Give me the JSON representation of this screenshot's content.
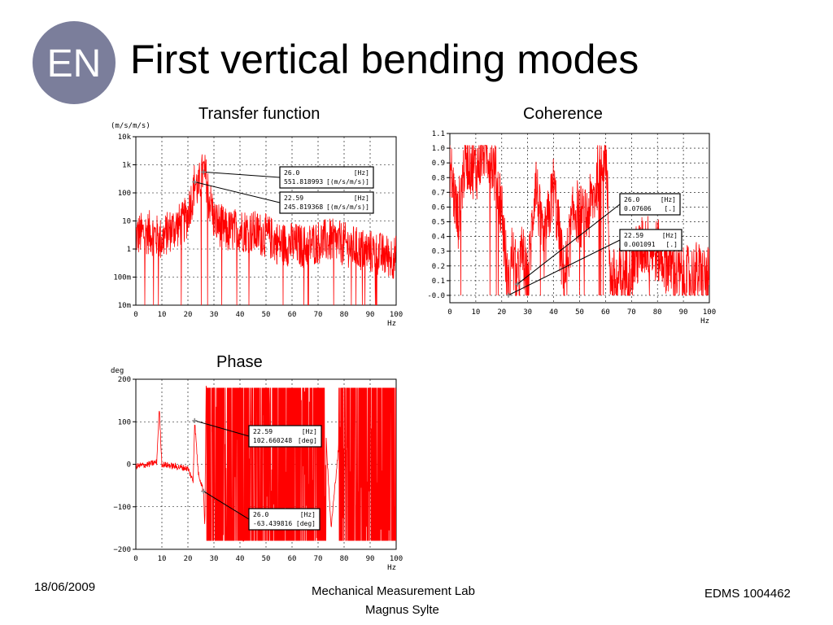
{
  "slide": {
    "logo_text": "EN",
    "title": "First vertical bending modes",
    "date": "18/06/2009",
    "center_line1": "Mechanical Measurement Lab",
    "center_line2": "Magnus Sylte",
    "edms": "EDMS 1004462"
  },
  "colors": {
    "trace": "#ff0000",
    "logo": "#7b7e9b",
    "grid": "#000000"
  },
  "chart_data": [
    {
      "id": "transfer",
      "type": "line",
      "title": "Transfer function",
      "ylabel": "(m/s/m/s)",
      "xlabel": "Hz",
      "xlim": [
        0,
        100
      ],
      "ylim": [
        0.01,
        10000
      ],
      "yscale": "log",
      "x_ticks": [
        0,
        10,
        20,
        30,
        40,
        50,
        60,
        70,
        80,
        90,
        100
      ],
      "y_tick_values": [
        0.01,
        0.1,
        1,
        10,
        100,
        1000,
        10000
      ],
      "y_tick_labels": [
        "10m",
        "100m",
        "1",
        "10",
        "100",
        "1k",
        "10k"
      ],
      "grid": true,
      "series": [
        {
          "x": [
            0,
            5,
            10,
            15,
            18,
            20,
            22,
            22.59,
            24,
            26,
            28,
            30,
            35,
            40,
            45,
            50,
            55,
            60,
            65,
            70,
            75,
            80,
            85,
            90,
            95,
            100
          ],
          "y": [
            3,
            4,
            2,
            6,
            8,
            15,
            80,
            245.8,
            120,
            551.8,
            60,
            10,
            4,
            5,
            4,
            3,
            1.5,
            1.5,
            1.2,
            1.8,
            2,
            1.5,
            1,
            0.8,
            0.6,
            0.5
          ]
        }
      ],
      "markers": [
        {
          "x": 26.0,
          "y": 551.818993
        },
        {
          "x": 22.59,
          "y": 245.819368
        }
      ],
      "annotations": [
        {
          "x_text": "26.0",
          "x_unit": "[Hz]",
          "y_text": "551.818993",
          "y_unit": "[(m/s/m/s)]"
        },
        {
          "x_text": "22.59",
          "x_unit": "[Hz]",
          "y_text": "245.819368",
          "y_unit": "[(m/s/m/s)]"
        }
      ]
    },
    {
      "id": "coherence",
      "type": "line",
      "title": "Coherence",
      "ylabel": "",
      "xlabel": "Hz",
      "xlim": [
        0,
        100
      ],
      "ylim": [
        -0.05,
        1.1
      ],
      "x_ticks": [
        0,
        10,
        20,
        30,
        40,
        50,
        60,
        70,
        80,
        90,
        100
      ],
      "y_tick_values": [
        0,
        0.1,
        0.2,
        0.3,
        0.4,
        0.5,
        0.6,
        0.7,
        0.8,
        0.9,
        1.0,
        1.1
      ],
      "y_tick_labels": [
        "-0.0",
        "0.1",
        "0.2",
        "0.3",
        "0.4",
        "0.5",
        "0.6",
        "0.7",
        "0.8",
        "0.9",
        "1.0",
        "1.1"
      ],
      "grid": true,
      "series": [
        {
          "x": [
            0,
            3,
            6,
            10,
            13,
            16,
            20,
            22.59,
            24,
            26,
            28,
            30,
            33,
            36,
            40,
            44,
            48,
            52,
            56,
            58,
            60,
            62,
            65,
            70,
            75,
            80,
            85,
            90,
            95,
            100
          ],
          "y": [
            0.9,
            0.5,
            0.95,
            0.85,
            1.0,
            0.95,
            0.6,
            0.001,
            0.3,
            0.076,
            0.3,
            0.05,
            0.8,
            0.3,
            0.75,
            0.1,
            0.6,
            0.5,
            0.7,
            0.95,
            1.0,
            0.1,
            0.1,
            0.2,
            0.35,
            0.3,
            0.2,
            0.1,
            0.15,
            0.1
          ]
        }
      ],
      "markers": [
        {
          "x": 26.0,
          "y": 0.07606
        },
        {
          "x": 22.59,
          "y": 0.001091
        }
      ],
      "annotations": [
        {
          "x_text": "26.0",
          "x_unit": "[Hz]",
          "y_text": "0.07606",
          "y_unit": "[.]"
        },
        {
          "x_text": "22.59",
          "x_unit": "[Hz]",
          "y_text": "0.001091",
          "y_unit": "[.]"
        }
      ]
    },
    {
      "id": "phase",
      "type": "line",
      "title": "Phase",
      "ylabel": "deg",
      "xlabel": "Hz",
      "xlim": [
        0,
        100
      ],
      "ylim": [
        -200,
        200
      ],
      "x_ticks": [
        0,
        10,
        20,
        30,
        40,
        50,
        60,
        70,
        80,
        90,
        100
      ],
      "y_tick_values": [
        -200,
        -100,
        0,
        100,
        200
      ],
      "y_tick_labels": [
        "−200",
        "−100",
        "0",
        "100",
        "200"
      ],
      "grid": true,
      "series": [
        {
          "x": [
            0,
            5,
            8,
            9,
            10,
            15,
            20,
            22,
            22.59,
            24,
            26,
            26.5,
            27,
            30,
            40,
            50,
            60,
            70,
            72,
            75,
            80,
            85,
            90,
            95,
            100
          ],
          "y": [
            -5,
            0,
            5,
            130,
            0,
            -5,
            -10,
            -40,
            102.66,
            -20,
            -63.44,
            -150,
            180,
            -180,
            180,
            -180,
            180,
            -180,
            180,
            -150,
            180,
            -180,
            180,
            -180,
            180
          ]
        }
      ],
      "markers": [
        {
          "x": 22.59,
          "y": 102.660248
        },
        {
          "x": 26.0,
          "y": -63.439816
        }
      ],
      "annotations": [
        {
          "x_text": "22.59",
          "x_unit": "[Hz]",
          "y_text": "102.660248",
          "y_unit": "[deg]"
        },
        {
          "x_text": "26.0",
          "x_unit": "[Hz]",
          "y_text": "-63.439816",
          "y_unit": "[deg]"
        }
      ]
    }
  ]
}
